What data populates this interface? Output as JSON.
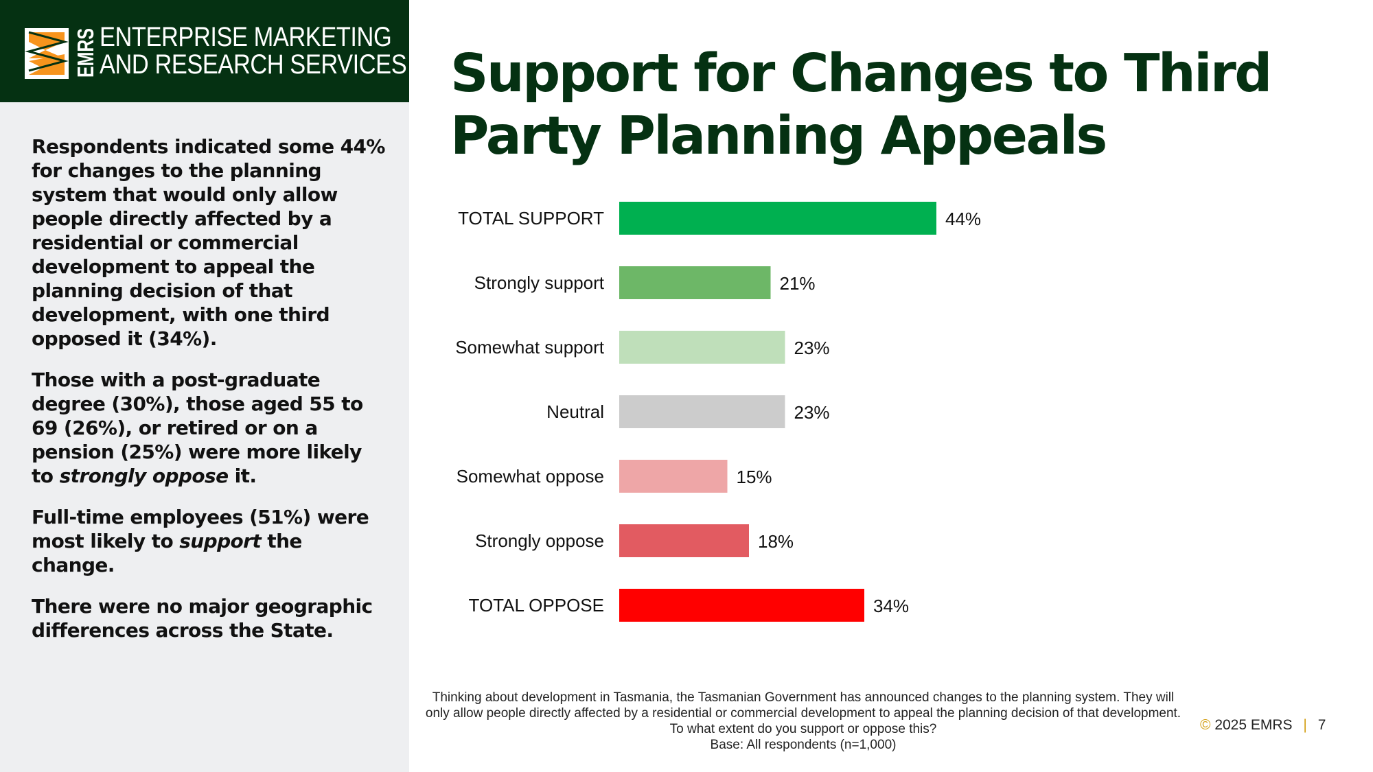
{
  "brand": {
    "logo_abbrev": "EMRS",
    "logo_line1": "ENTERPRISE MARKETING",
    "logo_line2": "AND RESEARCH SERVICES",
    "colors": {
      "dark_green": "#053112",
      "orange": "#f7941d"
    }
  },
  "sidebar": {
    "paragraphs": [
      {
        "segments": [
          {
            "text": "Respondents indicated some 44% for changes to the planning system that would only allow people directly affected by a residential or commercial development to appeal the planning decision of that development, with one third opposed it (34%).",
            "italic": false
          }
        ]
      },
      {
        "segments": [
          {
            "text": "Those with a post-graduate degree (30%), those aged 55 to 69 (26%), or retired or on a pension (25%) were more likely to ",
            "italic": false
          },
          {
            "text": "strongly oppose",
            "italic": true
          },
          {
            "text": " it.",
            "italic": false
          }
        ]
      },
      {
        "segments": [
          {
            "text": "Full-time employees (51%) were most likely to ",
            "italic": false
          },
          {
            "text": "support",
            "italic": true
          },
          {
            "text": " the change.",
            "italic": false
          }
        ]
      },
      {
        "segments": [
          {
            "text": "There were no major geographic differences across the State.",
            "italic": false
          }
        ]
      }
    ]
  },
  "title": "Support for Changes to Third Party Planning Appeals",
  "chart_data": {
    "type": "bar",
    "orientation": "horizontal",
    "categories": [
      "TOTAL SUPPORT",
      "Strongly support",
      "Somewhat support",
      "Neutral",
      "Somewhat oppose",
      "Strongly oppose",
      "TOTAL OPPOSE"
    ],
    "values": [
      44,
      21,
      23,
      23,
      15,
      18,
      34
    ],
    "value_labels": [
      "44%",
      "21%",
      "23%",
      "23%",
      "15%",
      "18%",
      "34%"
    ],
    "colors": [
      "#00b050",
      "#6db767",
      "#bfdfba",
      "#cccccc",
      "#eea6a7",
      "#e25b61",
      "#ff0000"
    ],
    "xlim": [
      0,
      100
    ],
    "grid": false,
    "legend": "none"
  },
  "question": {
    "line1": "Thinking about development in Tasmania, the Tasmanian Government has announced changes to the planning system.  They will",
    "line2": "only allow people directly affected by a residential or commercial development to appeal the planning decision of that development.",
    "line3": "To what extent do you support or oppose this?",
    "base": "Base: All respondents (n=1,000)"
  },
  "footer": {
    "copyright": "©",
    "text": "2025 EMRS",
    "separator": "|",
    "page": "7"
  }
}
